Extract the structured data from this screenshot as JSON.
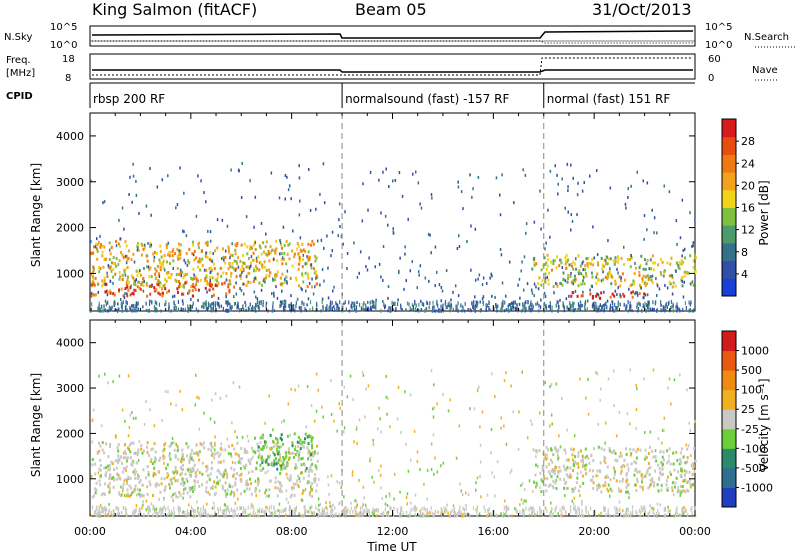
{
  "header": {
    "station": "King Salmon (fitACF)",
    "beam": "Beam 05",
    "date": "31/Oct/2013"
  },
  "summary": {
    "left_labels": {
      "nsky": "N.Sky",
      "freq_line1": "Freq.",
      "freq_line2": "[MHz]",
      "cpid": "CPID"
    },
    "right_labels": {
      "nsearch": "N.Search",
      "nave": "Nave"
    },
    "noise_ticks_left": [
      "10^5",
      "10^0"
    ],
    "noise_ticks_right": [
      "10^5",
      "10^0"
    ],
    "freq_ticks": [
      "18",
      "8"
    ],
    "nave_ticks": [
      "60",
      "0"
    ]
  },
  "cpid_segments": [
    {
      "label": "rbsp 200 RF",
      "start_h": 0
    },
    {
      "label": "normalsound (fast) -157 RF",
      "start_h": 10
    },
    {
      "label": "normal (fast) 151 RF",
      "start_h": 18
    }
  ],
  "axes": {
    "x_label": "Time UT",
    "x_ticks": [
      "00:00",
      "04:00",
      "08:00",
      "12:00",
      "16:00",
      "20:00",
      "00:00"
    ],
    "y_label": "Slant Range [km]",
    "y_ticks": [
      "1000",
      "2000",
      "3000",
      "4000"
    ]
  },
  "colorbars": {
    "power": {
      "label": "Power [dB]",
      "ticks": [
        "28",
        "24",
        "20",
        "16",
        "12",
        "8",
        "4"
      ],
      "colors": [
        "#1a3fd6",
        "#2f4fa8",
        "#35728a",
        "#4d9b6a",
        "#7fbf3e",
        "#f2d31b",
        "#f3a21d",
        "#f07a12",
        "#e84c0e",
        "#d51b1b"
      ]
    },
    "velocity": {
      "label": "Velocity [m s⁻¹]",
      "ticks": [
        "1000",
        "500",
        "100",
        "25",
        "-25",
        "-100",
        "-500",
        "-1000"
      ],
      "colors": [
        "#1f3fbf",
        "#2f6e8f",
        "#2a8a6a",
        "#6ccf3a",
        "#c8c8c4",
        "#f0b020",
        "#f08a10",
        "#e85a10",
        "#d21b1b"
      ]
    }
  },
  "chart_data": [
    {
      "type": "heatmap",
      "panel": "power",
      "xlabel": "Time UT",
      "ylabel": "Slant Range [km]",
      "xlim_hours": [
        0,
        24
      ],
      "ylim_km": [
        180,
        4500
      ],
      "colorbar": "Power [dB]",
      "colorbar_range": [
        0,
        30
      ],
      "regions": [
        {
          "t0": 0.0,
          "t1": 9.0,
          "r0": 700,
          "r1": 1700,
          "value": 18,
          "note": "bands"
        },
        {
          "t0": 0.0,
          "t1": 5.5,
          "r0": 500,
          "r1": 800,
          "value": 25
        },
        {
          "t0": 17.5,
          "t1": 24.0,
          "r0": 700,
          "r1": 1400,
          "value": 16
        },
        {
          "t0": 19.0,
          "t1": 22.0,
          "r0": 450,
          "r1": 600,
          "value": 28
        }
      ]
    },
    {
      "type": "heatmap",
      "panel": "velocity",
      "xlabel": "Time UT",
      "ylabel": "Slant Range [km]",
      "xlim_hours": [
        0,
        24
      ],
      "ylim_km": [
        180,
        4500
      ],
      "colorbar": "Velocity [m s⁻¹]",
      "colorbar_range": [
        -1000,
        1000
      ],
      "regions": [
        {
          "t0": 0.0,
          "t1": 9.0,
          "r0": 600,
          "r1": 1800,
          "value": 0
        },
        {
          "t0": 6.5,
          "t1": 8.8,
          "r0": 1200,
          "r1": 2000,
          "value": -250
        },
        {
          "t0": 17.5,
          "t1": 24.0,
          "r0": 700,
          "r1": 1700,
          "value": 0
        }
      ]
    }
  ]
}
